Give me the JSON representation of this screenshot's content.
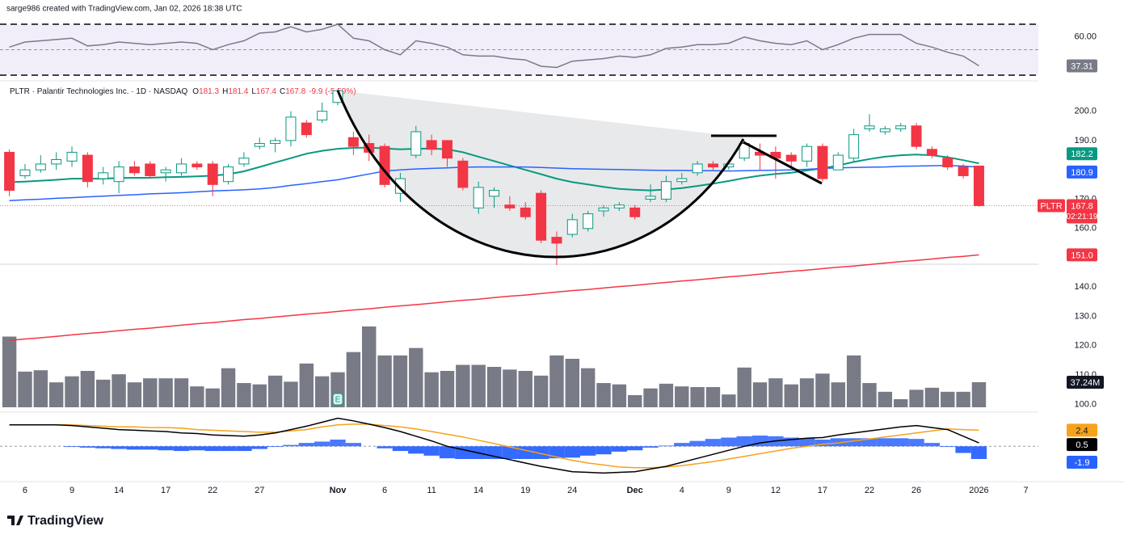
{
  "chart_data": {
    "type": "candlestick",
    "credit": "sarge986 created with TradingView.com, Jan 02, 2026 18:38 UTC",
    "title": "PLTR · Palantir Technologies Inc. · 1D · NASDAQ",
    "ohlc_letters": [
      "O",
      "H",
      "L",
      "C"
    ],
    "change": "-9.9 (-5.59%)",
    "symbol": "PLTR",
    "countdown": "02:21:19",
    "footer": "TradingView",
    "up_color": "#089981",
    "down_color": "#f23645",
    "x": [
      0,
      1,
      2,
      3,
      4,
      5,
      6,
      7,
      8,
      9,
      10,
      11,
      12,
      13,
      14,
      15,
      16,
      17,
      18,
      19,
      20,
      21,
      22,
      23,
      24,
      25,
      26,
      27,
      28,
      29,
      30,
      31,
      32,
      33,
      34,
      35,
      36,
      37,
      38,
      39,
      40,
      41,
      42,
      43,
      44,
      45,
      46,
      47,
      48,
      49,
      50,
      51,
      52,
      53,
      54,
      55,
      56,
      57,
      58,
      59,
      60,
      61,
      62
    ],
    "xlim": [
      -0.6,
      65.8
    ],
    "xticks": [
      {
        "value": 1,
        "label": "6"
      },
      {
        "value": 4,
        "label": "9"
      },
      {
        "value": 7,
        "label": "14"
      },
      {
        "value": 10,
        "label": "17"
      },
      {
        "value": 13,
        "label": "22"
      },
      {
        "value": 16,
        "label": "27"
      },
      {
        "value": 21,
        "label": "Nov"
      },
      {
        "value": 24,
        "label": "6"
      },
      {
        "value": 27,
        "label": "11"
      },
      {
        "value": 30,
        "label": "14"
      },
      {
        "value": 33,
        "label": "19"
      },
      {
        "value": 36,
        "label": "24"
      },
      {
        "value": 40,
        "label": "Dec"
      },
      {
        "value": 43,
        "label": "4"
      },
      {
        "value": 46,
        "label": "9"
      },
      {
        "value": 49,
        "label": "12"
      },
      {
        "value": 52,
        "label": "17"
      },
      {
        "value": 55,
        "label": "22"
      },
      {
        "value": 58,
        "label": "26"
      },
      {
        "value": 62,
        "label": "2026"
      },
      {
        "value": 65,
        "label": "7"
      }
    ],
    "ylim": [
      99,
      209
    ],
    "yticks": [
      {
        "value": 200,
        "label": "200.0"
      },
      {
        "value": 190,
        "label": "190.0"
      },
      {
        "value": 170,
        "label": "170.0"
      },
      {
        "value": 160,
        "label": "160.0"
      },
      {
        "value": 140,
        "label": "140.0"
      },
      {
        "value": 130,
        "label": "130.0"
      },
      {
        "value": 120,
        "label": "120.0"
      },
      {
        "value": 110,
        "label": "110.0"
      },
      {
        "value": 100,
        "label": "100.0"
      }
    ],
    "open": [
      186,
      178,
      180,
      182,
      183,
      185,
      177,
      176,
      181,
      182,
      179,
      179,
      182,
      182,
      176,
      182,
      188,
      189,
      190,
      196,
      197,
      203,
      191,
      189,
      188,
      172,
      185,
      190,
      190,
      183,
      167,
      171,
      168,
      167,
      172,
      157,
      158,
      160,
      166,
      167,
      167,
      170,
      170,
      176,
      179,
      182,
      181,
      184,
      186,
      186,
      185,
      183,
      188,
      180,
      184,
      194,
      193,
      194,
      195,
      187,
      184,
      181,
      181.3
    ],
    "high": [
      187,
      182,
      185,
      186,
      188,
      186,
      181,
      183,
      183,
      183,
      181,
      184,
      183,
      183,
      182,
      186,
      191,
      191,
      200,
      197,
      203,
      207.5,
      193,
      192,
      189,
      179,
      195,
      192,
      190,
      184,
      176,
      174,
      171,
      169,
      173,
      159,
      165,
      166,
      168,
      169,
      168,
      175,
      178,
      179,
      183,
      183,
      183,
      190,
      189,
      188,
      186,
      189,
      189,
      186,
      194,
      199,
      195,
      196,
      196,
      188,
      185,
      182,
      181.4
    ],
    "low": [
      171,
      177,
      179,
      180,
      181,
      174,
      175,
      172,
      178,
      177,
      176,
      178,
      180,
      171,
      175,
      181,
      187,
      186,
      188,
      191,
      196,
      202,
      185,
      183,
      174,
      169,
      184,
      185,
      181,
      173,
      165,
      167,
      166,
      163,
      155,
      147.5,
      157,
      159,
      164,
      166,
      163,
      169,
      169,
      175,
      178,
      180,
      180,
      183,
      180,
      177,
      181,
      181,
      176,
      180,
      183,
      193,
      192,
      193,
      187,
      184,
      180,
      177,
      167.4
    ],
    "close": [
      173,
      180,
      182,
      183.5,
      186,
      176,
      179,
      181,
      179,
      178,
      180,
      182,
      181,
      175,
      181,
      184,
      189,
      190,
      198,
      192,
      200,
      207,
      188,
      186,
      175,
      177,
      193,
      187,
      184,
      174,
      174,
      173,
      167,
      164,
      156,
      155,
      163,
      165,
      167,
      168,
      164,
      171,
      176,
      177,
      182,
      181,
      182,
      189,
      185,
      184,
      183,
      188,
      177,
      185,
      192,
      195,
      194,
      195,
      188,
      185,
      181,
      178,
      167.8
    ],
    "moving_averages": [
      {
        "color": "#089981",
        "values": [
          175.8,
          176,
          176.3,
          176.6,
          177,
          177,
          177,
          177.2,
          177.3,
          177.3,
          177.5,
          177.6,
          177.8,
          178,
          178.5,
          179.5,
          181,
          182.5,
          184,
          185.5,
          186.5,
          187.2,
          187.5,
          187.6,
          187.3,
          187,
          187.2,
          187.3,
          187,
          186,
          184.5,
          183,
          181.5,
          180,
          178.5,
          177,
          175.8,
          175,
          174.2,
          173.5,
          173.2,
          173,
          173.3,
          173.8,
          174.5,
          175.3,
          176.2,
          177.2,
          178,
          178.6,
          179,
          179.8,
          180.5,
          181.5,
          182.7,
          183.7,
          184.5,
          185,
          185.2,
          185,
          184.3,
          183.3,
          182.2
        ]
      },
      {
        "color": "#2962ff",
        "values": [
          169.5,
          169.8,
          170,
          170.3,
          170.5,
          170.8,
          171,
          171.3,
          171.5,
          171.8,
          172,
          172.2,
          172.5,
          172.8,
          173,
          173.2,
          173.5,
          174,
          174.7,
          175.3,
          176,
          176.6,
          177.6,
          178.6,
          179.6,
          180,
          180.3,
          180.5,
          180.7,
          180.9,
          181,
          181,
          181,
          181,
          180.8,
          180.6,
          180.4,
          180.3,
          180.2,
          180.1,
          180,
          179.9,
          179.8,
          179.8,
          179.7,
          179.7,
          179.6,
          179.7,
          179.8,
          179.9,
          180,
          180.2,
          180.5,
          180.7,
          180.8,
          180.9,
          181,
          181.2,
          181.3,
          181.4,
          181.5,
          181.3,
          180.9
        ]
      },
      {
        "color": "#f23645",
        "last_label": "151.0",
        "values": [
          121.8,
          122.3,
          122.7,
          123.2,
          123.7,
          124.2,
          124.6,
          125.1,
          125.6,
          126.0,
          126.5,
          127.0,
          127.5,
          127.9,
          128.4,
          128.9,
          129.3,
          129.8,
          130.3,
          130.8,
          131.2,
          131.7,
          132.2,
          132.6,
          133.1,
          133.6,
          134.0,
          134.5,
          135.0,
          135.5,
          135.9,
          136.4,
          136.9,
          137.3,
          137.8,
          138.3,
          138.8,
          139.2,
          139.7,
          140.2,
          140.6,
          141.1,
          141.6,
          142.1,
          142.5,
          143.0,
          143.5,
          143.9,
          144.4,
          144.9,
          145.4,
          145.8,
          146.3,
          146.8,
          147.2,
          147.7,
          148.2,
          148.7,
          149.1,
          149.6,
          150.1,
          150.5,
          151.0
        ]
      }
    ],
    "volume": {
      "color": "#787b86",
      "ylim": [
        0,
        144
      ],
      "last_label": "37.24M",
      "values": [
        105,
        53,
        55,
        37,
        46,
        54,
        41,
        49,
        37,
        43,
        43,
        43,
        31,
        28,
        58,
        36,
        34,
        47,
        38,
        65,
        46,
        52,
        82,
        120,
        77,
        77,
        88,
        52,
        54,
        63,
        63,
        60,
        56,
        54,
        47,
        77,
        72,
        58,
        36,
        34,
        18,
        28,
        35,
        31,
        30,
        30,
        19,
        59,
        37,
        43,
        34,
        43,
        50,
        37,
        77,
        36,
        23,
        12,
        26,
        29,
        23,
        23,
        37.24
      ]
    },
    "earnings": {
      "x": 21,
      "label": "E"
    },
    "rsi": {
      "color": "#787b86",
      "ylim": [
        30,
        70
      ],
      "levels": [
        70,
        50,
        30
      ],
      "yticks": [
        {
          "value": 60,
          "label": "60.00"
        }
      ],
      "values": [
        52,
        56,
        57,
        58,
        59,
        53,
        54,
        56,
        55,
        54,
        55,
        56,
        55,
        50,
        54,
        57,
        63,
        64,
        68,
        64,
        66,
        70,
        59,
        57,
        50,
        46,
        57,
        55,
        52,
        46,
        45,
        45,
        43,
        42,
        37,
        36,
        41,
        42,
        43,
        45,
        44,
        46,
        51,
        52,
        54,
        54,
        55,
        60,
        57,
        55,
        54,
        57,
        50,
        54,
        59,
        62,
        62,
        62,
        55,
        52,
        48,
        45,
        37.31
      ]
    },
    "macd": {
      "ylim": [
        -4.8,
        4.5
      ],
      "levels": [
        0
      ],
      "line": {
        "color": "#000000",
        "values": [
          3.2,
          3.2,
          3.2,
          3.2,
          3.1,
          2.9,
          2.7,
          2.5,
          2.4,
          2.3,
          2.2,
          2.0,
          1.9,
          1.7,
          1.6,
          1.5,
          1.7,
          2.0,
          2.5,
          3.0,
          3.6,
          4.2,
          3.8,
          3.3,
          2.8,
          2.2,
          1.5,
          0.8,
          0,
          -0.5,
          -1.0,
          -1.5,
          -2.0,
          -2.5,
          -3.0,
          -3.4,
          -3.8,
          -3.9,
          -4.0,
          -3.9,
          -3.8,
          -3.4,
          -3.0,
          -2.4,
          -1.8,
          -1.2,
          -0.6,
          0,
          0.5,
          0.8,
          1.0,
          1.2,
          1.3,
          1.7,
          2.0,
          2.3,
          2.6,
          2.9,
          3.1,
          2.8,
          2.5,
          1.5,
          0.5
        ]
      },
      "signal": {
        "color": "#f7a21b",
        "values": [
          3.2,
          3.2,
          3.2,
          3.2,
          3.2,
          3.1,
          3.0,
          2.9,
          2.9,
          2.8,
          2.8,
          2.7,
          2.5,
          2.4,
          2.3,
          2.2,
          2.1,
          2.1,
          2.3,
          2.5,
          2.9,
          3.2,
          3.3,
          3.3,
          3.1,
          2.9,
          2.6,
          2.2,
          1.8,
          1.4,
          0.9,
          0.4,
          -0.1,
          -0.6,
          -1.1,
          -1.6,
          -2.1,
          -2.5,
          -2.8,
          -3.1,
          -3.2,
          -3.2,
          -3.1,
          -2.9,
          -2.6,
          -2.3,
          -1.9,
          -1.5,
          -1.1,
          -0.7,
          -0.3,
          0,
          0.3,
          0.5,
          0.8,
          1.1,
          1.4,
          1.7,
          2.0,
          2.3,
          2.6,
          2.5,
          2.4
        ]
      },
      "histogram": {
        "color": "#2962ff",
        "values": [
          0,
          0,
          0,
          0,
          -0.1,
          -0.2,
          -0.3,
          -0.4,
          -0.5,
          -0.5,
          -0.6,
          -0.7,
          -0.6,
          -0.7,
          -0.7,
          -0.7,
          -0.4,
          -0.1,
          0.2,
          0.5,
          0.7,
          1.0,
          0.5,
          0,
          -0.3,
          -0.7,
          -1.1,
          -1.4,
          -1.8,
          -1.9,
          -1.9,
          -1.9,
          -1.9,
          -1.9,
          -1.9,
          -1.8,
          -1.7,
          -1.4,
          -1.2,
          -0.8,
          -0.6,
          -0.2,
          0.1,
          0.5,
          0.8,
          1.1,
          1.3,
          1.5,
          1.6,
          1.5,
          1.3,
          1.2,
          1.0,
          1.2,
          1.2,
          1.2,
          1.2,
          1.2,
          1.1,
          0.5,
          -0.1,
          -1.0,
          -1.9
        ]
      }
    }
  }
}
